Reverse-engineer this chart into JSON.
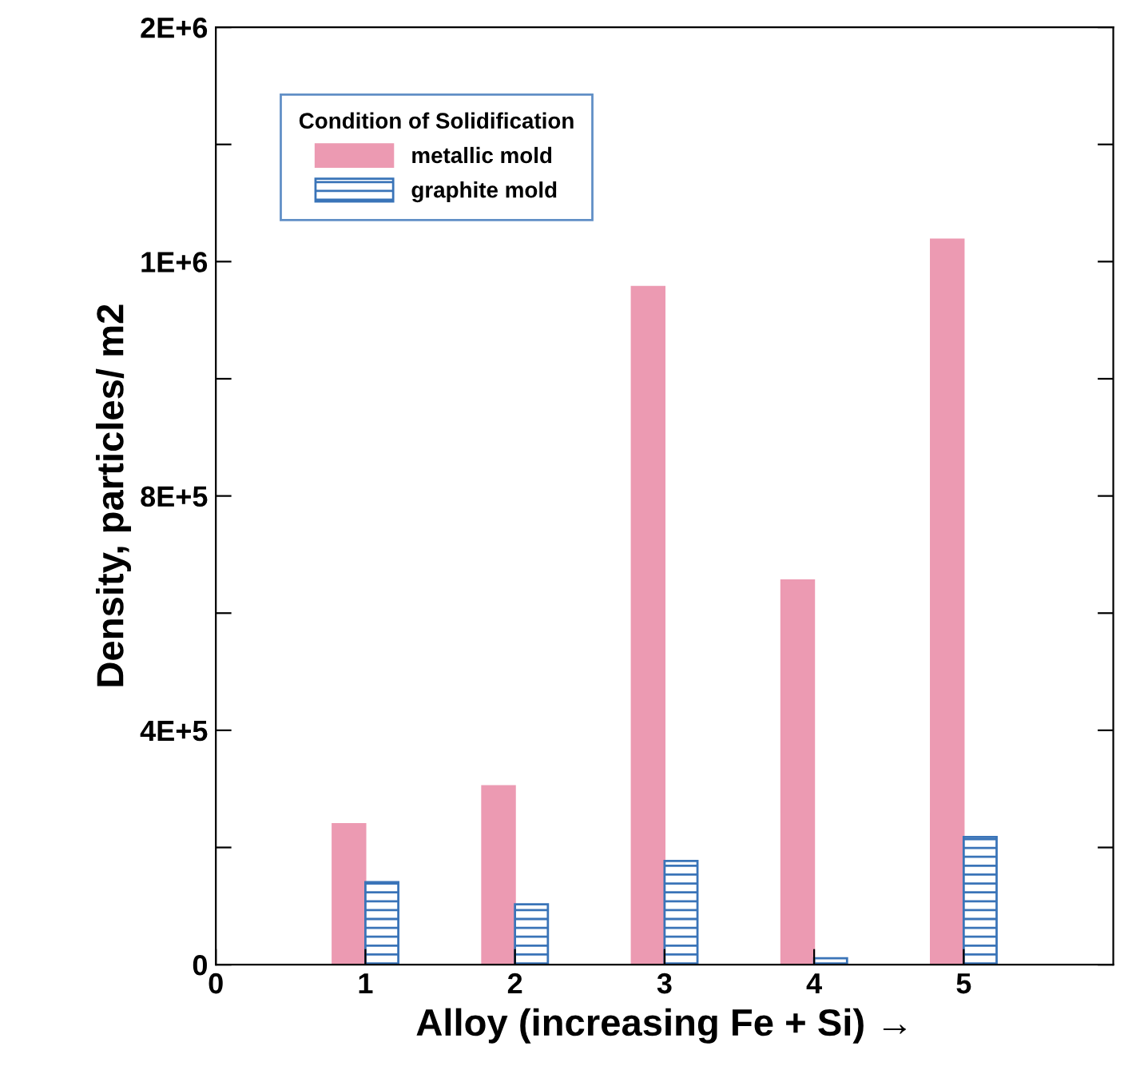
{
  "chart_data": {
    "type": "bar",
    "xlabel": "Alloy (increasing Fe + Si) →",
    "ylabel": "Density, particles/ m2",
    "legend_title": "Condition of Solidification",
    "x": [
      1,
      2,
      3,
      4,
      5
    ],
    "series": [
      {
        "name": "metallic mold",
        "color": "#ec9ab2",
        "values": [
          240000,
          305000,
          1157000,
          656000,
          1238000
        ]
      },
      {
        "name": "graphite mold",
        "color": "#3a74b8",
        "values": [
          141000,
          103000,
          177000,
          11000,
          218000
        ]
      }
    ],
    "xlim": [
      0,
      6
    ],
    "xticks": [
      0,
      1,
      2,
      3,
      4,
      5
    ],
    "ylim": [
      0,
      1600000
    ],
    "yticks": [
      0,
      {
        "value": 200000,
        "label": null
      },
      {
        "value": 400000,
        "label": "4E+5"
      },
      {
        "value": 600000,
        "label": null
      },
      {
        "value": 800000,
        "label": "8E+5"
      },
      {
        "value": 1000000,
        "label": null
      },
      {
        "value": 1200000,
        "label": "1E+6"
      },
      {
        "value": 1400000,
        "label": null
      },
      {
        "value": 1600000,
        "label": "2E+6"
      }
    ],
    "grid": false,
    "legend": "top left"
  }
}
